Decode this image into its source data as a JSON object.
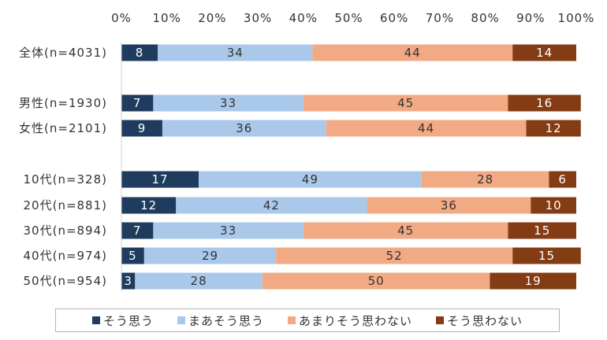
{
  "chart_data": {
    "type": "bar",
    "orientation": "horizontal",
    "stacked": "percent",
    "xlim": [
      0,
      100
    ],
    "x_ticks": [
      "0%",
      "10%",
      "20%",
      "30%",
      "40%",
      "50%",
      "60%",
      "70%",
      "80%",
      "90%",
      "100%"
    ],
    "categories": [
      "全体(n=4031)",
      "男性(n=1930)",
      "女性(n=2101)",
      "10代(n=328)",
      "20代(n=881)",
      "30代(n=894)",
      "40代(n=974)",
      "50代(n=954)"
    ],
    "series": [
      {
        "name": "そう思う",
        "color": "#1f3c5e",
        "label_color": "#ffffff",
        "values": [
          8,
          7,
          9,
          17,
          12,
          7,
          5,
          3
        ]
      },
      {
        "name": "まあそう思う",
        "color": "#a9c8ea",
        "label_color": "#333333",
        "values": [
          34,
          33,
          36,
          49,
          42,
          33,
          29,
          28
        ]
      },
      {
        "name": "あまりそう思わない",
        "color": "#f2aa84",
        "label_color": "#333333",
        "values": [
          44,
          45,
          44,
          28,
          36,
          45,
          52,
          50
        ]
      },
      {
        "name": "そう思わない",
        "color": "#843c14",
        "label_color": "#ffffff",
        "values": [
          14,
          16,
          12,
          6,
          10,
          15,
          15,
          19
        ]
      }
    ],
    "grid": false,
    "legend_position": "bottom"
  }
}
